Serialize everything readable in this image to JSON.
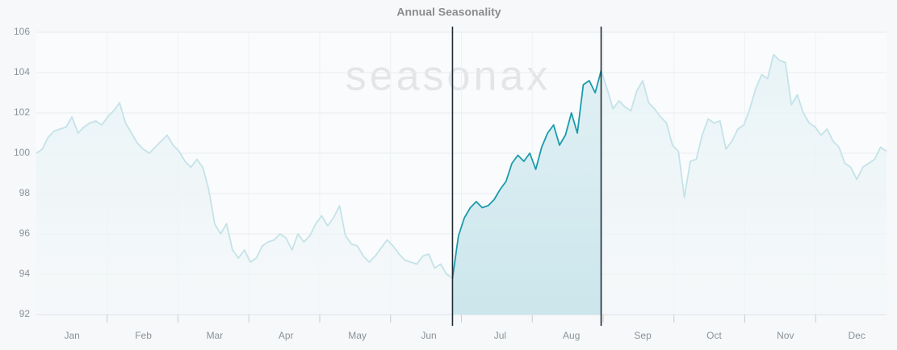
{
  "chart_data": {
    "type": "line",
    "title": "Annual Seasonality",
    "watermark": "seasonax",
    "categories": [
      null,
      null,
      null,
      null,
      null,
      null,
      "Jan",
      null,
      null,
      null,
      null,
      null,
      null,
      null,
      null,
      null,
      null,
      null,
      "Feb",
      null,
      null,
      null,
      null,
      null,
      null,
      null,
      null,
      null,
      null,
      null,
      "Mar",
      null,
      null,
      null,
      null,
      null,
      null,
      null,
      null,
      null,
      null,
      null,
      "Apr",
      null,
      null,
      null,
      null,
      null,
      null,
      null,
      null,
      null,
      null,
      null,
      "May",
      null,
      null,
      null,
      null,
      null,
      null,
      null,
      null,
      null,
      null,
      null,
      "Jun",
      null,
      null,
      null,
      null,
      null,
      null,
      null,
      null,
      null,
      null,
      null,
      "Jul",
      null,
      null,
      null,
      null,
      null,
      null,
      null,
      null,
      null,
      null,
      null,
      "Aug",
      null,
      null,
      null,
      null,
      null,
      null,
      null,
      null,
      null,
      null,
      null,
      "Sep",
      null,
      null,
      null,
      null,
      null,
      null,
      null,
      null,
      null,
      null,
      null,
      "Oct",
      null,
      null,
      null,
      null,
      null,
      null,
      null,
      null,
      null,
      null,
      null,
      "Nov",
      null,
      null,
      null,
      null,
      null,
      null,
      null,
      null,
      null,
      null,
      null,
      "Dec",
      null,
      null,
      null,
      null,
      null
    ],
    "series": [
      {
        "color": "#c3e3e9",
        "highlight_color": "#1a9bab",
        "values": [
          100,
          100.2,
          100.8,
          101.1,
          101.2,
          101.3,
          101.8,
          101,
          101.3,
          101.5,
          101.6,
          101.4,
          101.8,
          102.1,
          102.5,
          101.5,
          101,
          100.5,
          100.2,
          100,
          100.3,
          100.6,
          100.9,
          100.4,
          100.1,
          99.6,
          99.3,
          99.7,
          99.3,
          98.2,
          96.5,
          96,
          96.5,
          95.2,
          94.8,
          95.2,
          94.6,
          94.8,
          95.4,
          95.6,
          95.7,
          96,
          95.8,
          95.2,
          96,
          95.6,
          95.9,
          96.5,
          96.9,
          96.4,
          96.8,
          97.4,
          95.9,
          95.5,
          95.4,
          94.9,
          94.6,
          94.9,
          95.3,
          95.7,
          95.4,
          95,
          94.7,
          94.6,
          94.5,
          94.9,
          95,
          94.3,
          94.5,
          94.0,
          93.8,
          95.9,
          96.8,
          97.3,
          97.6,
          97.3,
          97.4,
          97.7,
          98.2,
          98.6,
          99.5,
          99.9,
          99.6,
          100,
          99.2,
          100.3,
          101,
          101.4,
          100.4,
          100.9,
          102,
          101,
          103.4,
          103.6,
          103,
          104.1,
          103.2,
          102.2,
          102.6,
          102.3,
          102.1,
          103.1,
          103.6,
          102.5,
          102.2,
          101.8,
          101.5,
          100.4,
          100.1,
          97.8,
          99.6,
          99.7,
          100.9,
          101.7,
          101.5,
          101.6,
          100.2,
          100.6,
          101.2,
          101.4,
          102.2,
          103.2,
          103.9,
          103.7,
          104.9,
          104.6,
          104.5,
          102.4,
          102.9,
          102,
          101.5,
          101.3,
          100.9,
          101.2,
          100.6,
          100.3,
          99.5,
          99.3,
          98.7,
          99.3,
          99.5,
          99.7,
          100.3,
          100.1
        ]
      }
    ],
    "highlight_range": [
      70,
      95
    ],
    "ylim": [
      92,
      106
    ],
    "yticks": [
      92,
      94,
      96,
      98,
      100,
      102,
      104,
      106
    ],
    "grid": true
  }
}
